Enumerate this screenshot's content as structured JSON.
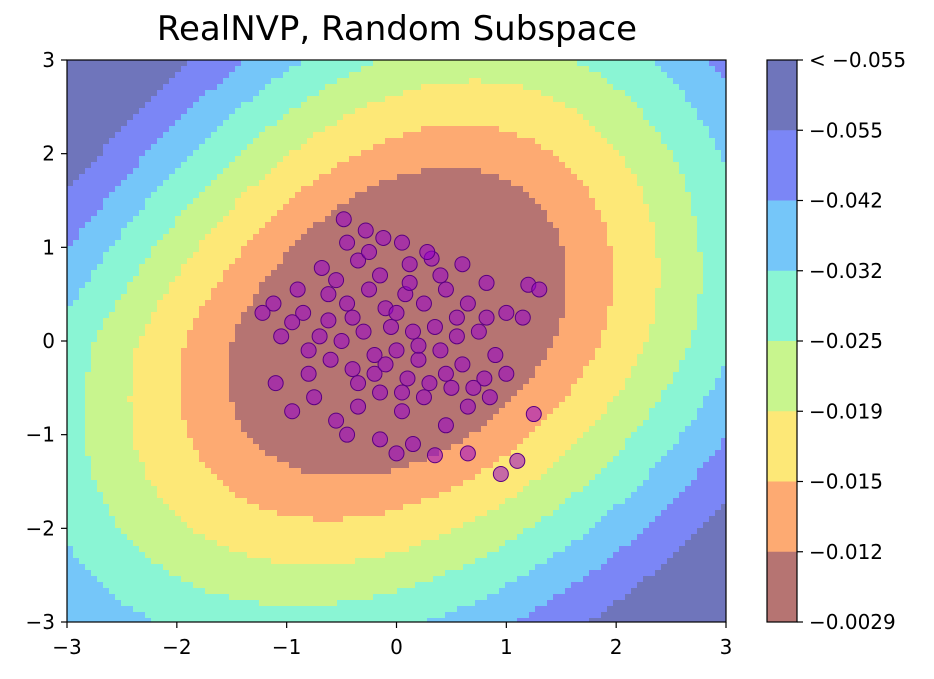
{
  "chart_data": {
    "type": "contour",
    "title": "RealNVP, Random Subspace",
    "xlabel": "",
    "ylabel": "",
    "xlim": [
      -3,
      3
    ],
    "ylim": [
      -3,
      3
    ],
    "xticks": [
      "−3",
      "−2",
      "−1",
      "0",
      "1",
      "2",
      "3"
    ],
    "yticks": [
      "−3",
      "−2",
      "−1",
      "0",
      "1",
      "2",
      "3"
    ],
    "colorbar": {
      "levels": [
        "< −0.055",
        "−0.055",
        "−0.042",
        "−0.032",
        "−0.025",
        "−0.019",
        "−0.015",
        "−0.012",
        "−0.0029"
      ],
      "band_colors": [
        "#6f75bb",
        "#7b86f6",
        "#75c6f9",
        "#8af5d4",
        "#c8f58e",
        "#fde877",
        "#fdaa72",
        "#b67472"
      ]
    },
    "contour_line_colors": [
      "#1060ff",
      "#10c8e8",
      "#80f090",
      "#d8f020",
      "#f8c010",
      "#f88818",
      "#f02808"
    ],
    "contour_thresholds": [
      0.055,
      0.042,
      0.032,
      0.025,
      0.019,
      0.015,
      0.012
    ],
    "samples": {
      "color": "#9900cc",
      "edge_color": "#5a0080",
      "points": [
        [
          -0.48,
          1.3
        ],
        [
          -0.28,
          1.18
        ],
        [
          -0.12,
          1.1
        ],
        [
          0.05,
          1.05
        ],
        [
          -0.45,
          1.05
        ],
        [
          -0.68,
          0.78
        ],
        [
          -0.35,
          0.86
        ],
        [
          0.12,
          0.82
        ],
        [
          0.32,
          0.88
        ],
        [
          0.6,
          0.82
        ],
        [
          0.82,
          0.62
        ],
        [
          -0.9,
          0.55
        ],
        [
          -1.12,
          0.4
        ],
        [
          -1.22,
          0.3
        ],
        [
          -1.05,
          0.05
        ],
        [
          -0.85,
          0.3
        ],
        [
          -0.62,
          0.5
        ],
        [
          -0.45,
          0.4
        ],
        [
          -0.25,
          0.55
        ],
        [
          -0.1,
          0.35
        ],
        [
          0.08,
          0.5
        ],
        [
          0.25,
          0.4
        ],
        [
          0.45,
          0.55
        ],
        [
          0.65,
          0.4
        ],
        [
          0.82,
          0.25
        ],
        [
          1.0,
          0.3
        ],
        [
          1.15,
          0.25
        ],
        [
          1.2,
          0.6
        ],
        [
          1.3,
          0.55
        ],
        [
          -1.1,
          -0.45
        ],
        [
          -0.8,
          -0.35
        ],
        [
          -0.6,
          -0.2
        ],
        [
          -0.4,
          -0.3
        ],
        [
          -0.2,
          -0.15
        ],
        [
          0.0,
          -0.1
        ],
        [
          0.2,
          -0.2
        ],
        [
          0.4,
          -0.1
        ],
        [
          0.6,
          -0.25
        ],
        [
          0.8,
          -0.4
        ],
        [
          1.0,
          -0.35
        ],
        [
          -0.95,
          -0.75
        ],
        [
          -0.75,
          -0.6
        ],
        [
          -0.55,
          -0.85
        ],
        [
          -0.35,
          -0.7
        ],
        [
          -0.15,
          -0.55
        ],
        [
          0.05,
          -0.75
        ],
        [
          0.25,
          -0.6
        ],
        [
          0.45,
          -0.9
        ],
        [
          0.65,
          -0.7
        ],
        [
          0.85,
          -0.6
        ],
        [
          1.25,
          -0.78
        ],
        [
          -0.45,
          -1.0
        ],
        [
          -0.15,
          -1.05
        ],
        [
          0.15,
          -1.1
        ],
        [
          0.0,
          -1.2
        ],
        [
          0.35,
          -1.22
        ],
        [
          0.65,
          -1.2
        ],
        [
          1.1,
          -1.28
        ],
        [
          0.95,
          -1.42
        ],
        [
          -0.3,
          0.1
        ],
        [
          -0.5,
          0.0
        ],
        [
          -0.7,
          0.05
        ],
        [
          -0.05,
          0.15
        ],
        [
          0.15,
          0.1
        ],
        [
          0.35,
          0.15
        ],
        [
          0.55,
          0.05
        ],
        [
          0.75,
          0.1
        ],
        [
          -0.2,
          -0.35
        ],
        [
          0.1,
          -0.4
        ],
        [
          0.3,
          -0.45
        ],
        [
          0.5,
          -0.5
        ],
        [
          -0.8,
          -0.1
        ],
        [
          -0.62,
          0.22
        ],
        [
          -0.15,
          0.7
        ],
        [
          0.4,
          0.7
        ],
        [
          0.55,
          0.25
        ],
        [
          -0.35,
          -0.45
        ],
        [
          0.0,
          0.3
        ],
        [
          0.2,
          -0.05
        ],
        [
          -0.1,
          -0.25
        ],
        [
          0.12,
          0.62
        ],
        [
          -0.55,
          0.65
        ],
        [
          0.9,
          -0.15
        ],
        [
          -0.95,
          0.2
        ],
        [
          0.7,
          -0.5
        ],
        [
          -0.25,
          0.95
        ],
        [
          0.28,
          0.95
        ],
        [
          0.45,
          -0.35
        ],
        [
          -0.4,
          0.25
        ],
        [
          0.05,
          -0.55
        ]
      ]
    }
  }
}
